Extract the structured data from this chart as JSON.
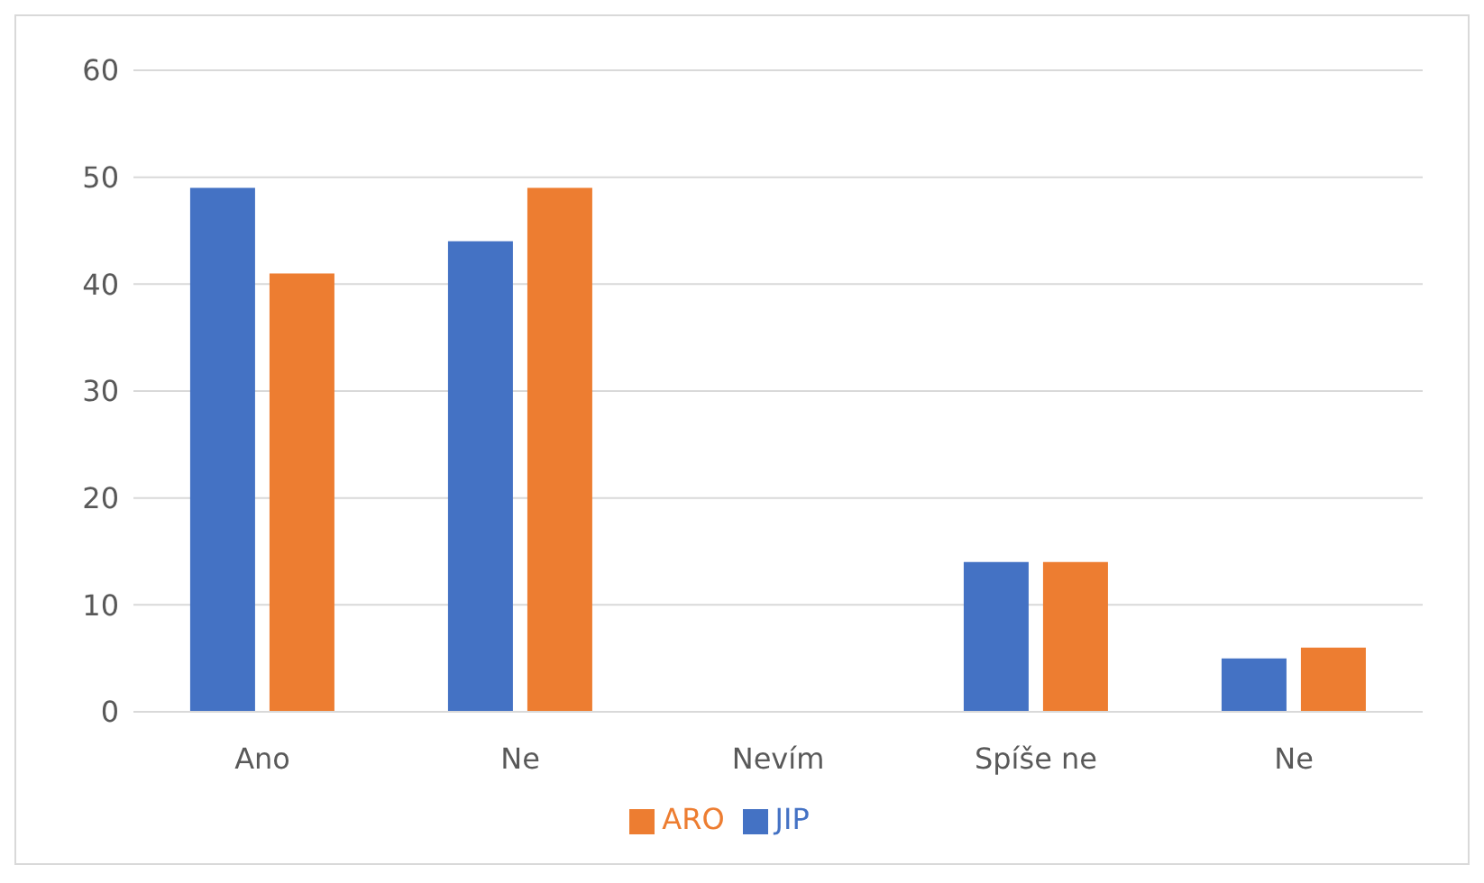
{
  "chart_data": {
    "type": "bar",
    "categories": [
      "Ano",
      "Ne",
      "Nevím",
      "Spíše ne",
      "Ne"
    ],
    "series": [
      {
        "name": "JIP",
        "color": "#4472c4",
        "values": [
          49,
          44,
          0,
          14,
          5
        ]
      },
      {
        "name": "ARO",
        "color": "#ed7d31",
        "values": [
          41,
          49,
          0,
          14,
          6
        ]
      }
    ],
    "ylim": [
      0,
      60
    ],
    "yticks": [
      0,
      10,
      20,
      30,
      40,
      50,
      60
    ],
    "grid": "y",
    "legend": "bottom"
  }
}
